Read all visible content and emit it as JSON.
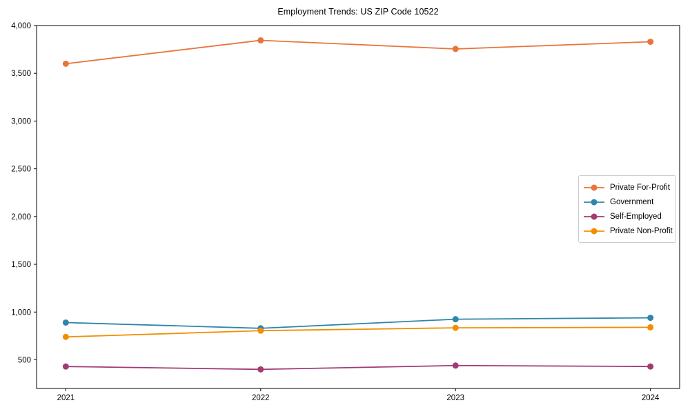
{
  "figure": {
    "background_color": "#ffffff",
    "axis_color": "#000000",
    "legend_border_color": "#cccccc"
  },
  "chart_data": {
    "type": "line",
    "title": "Employment Trends: US ZIP Code 10522",
    "xlabel": "",
    "ylabel": "",
    "grid": false,
    "legend_position": "center right",
    "marker": "circle",
    "x": [
      "2021",
      "2022",
      "2023",
      "2024"
    ],
    "series": [
      {
        "name": "Private For-Profit",
        "color": "#E8763C",
        "values": [
          3600,
          3845,
          3755,
          3830
        ]
      },
      {
        "name": "Government",
        "color": "#2E86AB",
        "values": [
          890,
          830,
          925,
          940
        ]
      },
      {
        "name": "Self-Employed",
        "color": "#A23B72",
        "values": [
          430,
          400,
          440,
          430
        ]
      },
      {
        "name": "Private Non-Profit",
        "color": "#F18F01",
        "values": [
          740,
          805,
          835,
          840
        ]
      }
    ],
    "ylim": [
      200,
      4000
    ],
    "yticks": [
      500,
      1000,
      1500,
      2000,
      2500,
      3000,
      3500,
      4000
    ],
    "ytick_labels": [
      "500",
      "1,000",
      "1,500",
      "2,000",
      "2,500",
      "3,000",
      "3,500",
      "4,000"
    ]
  }
}
